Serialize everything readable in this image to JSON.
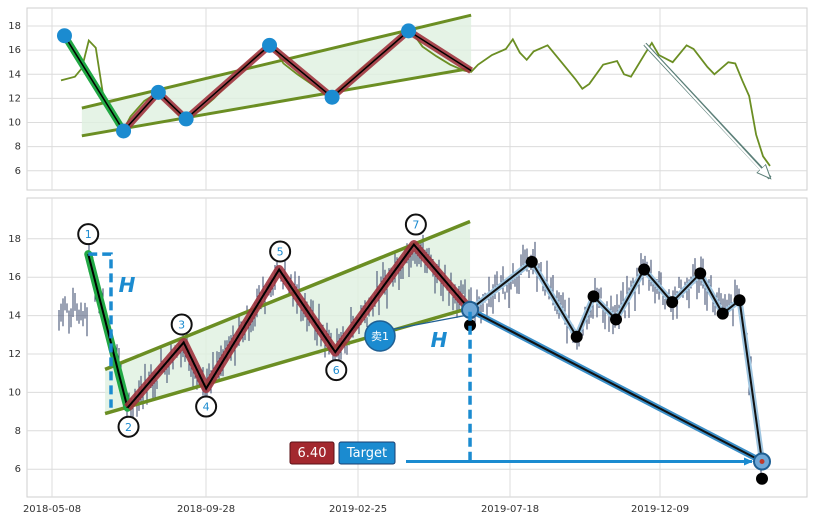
{
  "chart_data": [
    {
      "type": "line",
      "panel": "overview",
      "ylim": [
        5,
        19
      ],
      "yticks": [
        6,
        8,
        10,
        12,
        14,
        16,
        18
      ],
      "grid": true,
      "series": [
        {
          "role": "price",
          "color": "#6b8e23",
          "points": [
            [
              0,
              13.5
            ],
            [
              2,
              13.8
            ],
            [
              3,
              14.5
            ],
            [
              4,
              16.8
            ],
            [
              5,
              16.2
            ],
            [
              6,
              12.5
            ],
            [
              7,
              11.0
            ],
            [
              8,
              9.8
            ],
            [
              9,
              9.4
            ],
            [
              10,
              10.5
            ],
            [
              12,
              11.8
            ],
            [
              14,
              12.5
            ],
            [
              15,
              12.0
            ],
            [
              16,
              11.2
            ],
            [
              17,
              10.6
            ],
            [
              18,
              10.4
            ],
            [
              20,
              11.0
            ],
            [
              22,
              12.0
            ],
            [
              24,
              13.2
            ],
            [
              26,
              14.6
            ],
            [
              28,
              15.5
            ],
            [
              30,
              16.3
            ],
            [
              31,
              15.8
            ],
            [
              32,
              14.9
            ],
            [
              34,
              14.0
            ],
            [
              36,
              13.2
            ],
            [
              38,
              12.4
            ],
            [
              39,
              12.1
            ],
            [
              40,
              12.8
            ],
            [
              42,
              13.8
            ],
            [
              44,
              14.8
            ],
            [
              46,
              15.6
            ],
            [
              48,
              16.5
            ],
            [
              49,
              17.3
            ],
            [
              50,
              17.6
            ],
            [
              51,
              17.1
            ],
            [
              52,
              16.3
            ],
            [
              54,
              15.5
            ],
            [
              56,
              14.8
            ],
            [
              58,
              14.3
            ],
            [
              59,
              14.2
            ],
            [
              60,
              14.8
            ],
            [
              62,
              15.6
            ],
            [
              64,
              16.1
            ],
            [
              65,
              16.9
            ],
            [
              66,
              15.8
            ],
            [
              67,
              15.2
            ],
            [
              68,
              15.9
            ],
            [
              70,
              16.4
            ],
            [
              72,
              15.0
            ],
            [
              74,
              13.6
            ],
            [
              75,
              12.8
            ],
            [
              76,
              13.2
            ],
            [
              78,
              14.8
            ],
            [
              80,
              15.1
            ],
            [
              81,
              14.0
            ],
            [
              82,
              13.8
            ],
            [
              84,
              15.7
            ],
            [
              85,
              16.6
            ],
            [
              86,
              15.6
            ],
            [
              88,
              15.0
            ],
            [
              90,
              16.4
            ],
            [
              91,
              16.1
            ],
            [
              93,
              14.6
            ],
            [
              94,
              14.0
            ],
            [
              96,
              15.0
            ],
            [
              97,
              14.9
            ],
            [
              98,
              13.5
            ],
            [
              99,
              12.2
            ],
            [
              100,
              9.0
            ],
            [
              101,
              7.2
            ],
            [
              102,
              6.4
            ]
          ]
        }
      ],
      "pattern": {
        "pivots": [
          {
            "label": "1",
            "x": 0.5,
            "y": 17.2
          },
          {
            "label": "2",
            "x": 9,
            "y": 9.3
          },
          {
            "label": "3",
            "x": 14,
            "y": 12.5
          },
          {
            "label": "4",
            "x": 18,
            "y": 10.3
          },
          {
            "label": "5",
            "x": 30,
            "y": 16.4
          },
          {
            "label": "6",
            "x": 39,
            "y": 12.1
          },
          {
            "label": "7",
            "x": 50,
            "y": 17.6
          },
          {
            "label": "end",
            "x": 59,
            "y": 14.3
          }
        ],
        "upper_line": [
          [
            3,
            11.2
          ],
          [
            59,
            18.9
          ]
        ],
        "lower_line": [
          [
            3,
            8.9
          ],
          [
            59,
            14.5
          ]
        ],
        "projection": [
          [
            84,
            16.5
          ],
          [
            102,
            5.4
          ]
        ]
      }
    },
    {
      "type": "line",
      "panel": "detail",
      "ylim": [
        4.5,
        19.5
      ],
      "yticks": [
        6,
        8,
        10,
        12,
        14,
        16,
        18
      ],
      "xticks": [
        "2018-05-08",
        "2018-09-28",
        "2019-02-25",
        "2019-07-18",
        "2019-12-09"
      ],
      "grid": true,
      "pattern": {
        "pivots": [
          {
            "label": "1",
            "x": 2,
            "y": 17.2
          },
          {
            "label": "2",
            "x": 9,
            "y": 9.2
          },
          {
            "label": "3",
            "x": 19,
            "y": 12.6
          },
          {
            "label": "4",
            "x": 23,
            "y": 10.2
          },
          {
            "label": "5",
            "x": 36,
            "y": 16.4
          },
          {
            "label": "6",
            "x": 46,
            "y": 12.1
          },
          {
            "label": "7",
            "x": 60,
            "y": 17.7
          },
          {
            "label": "end",
            "x": 70,
            "y": 14.3
          }
        ],
        "upper_line": [
          [
            5,
            11.2
          ],
          [
            70,
            18.9
          ]
        ],
        "lower_line": [
          [
            5,
            8.9
          ],
          [
            70,
            14.4
          ]
        ]
      },
      "forecast_path": [
        [
          70,
          14.3
        ],
        [
          81,
          16.8
        ],
        [
          89,
          12.9
        ],
        [
          92,
          15.0
        ],
        [
          96,
          13.8
        ],
        [
          101,
          16.4
        ],
        [
          106,
          14.7
        ],
        [
          111,
          16.2
        ],
        [
          115,
          14.1
        ],
        [
          118,
          14.8
        ],
        [
          122,
          6.4
        ]
      ],
      "direct_path": [
        [
          70,
          14.3
        ],
        [
          122,
          6.4
        ]
      ],
      "black_dots": [
        [
          70,
          13.5
        ],
        [
          81,
          16.8
        ],
        [
          89,
          12.9
        ],
        [
          92,
          15.0
        ],
        [
          96,
          13.8
        ],
        [
          101,
          16.4
        ],
        [
          106,
          14.7
        ],
        [
          111,
          16.2
        ],
        [
          115,
          14.1
        ],
        [
          118,
          14.8
        ],
        [
          122,
          5.5
        ]
      ],
      "annotations": {
        "height_label": "H",
        "sell_label": "卖1",
        "target_price": "6.40",
        "target_label": "Target"
      },
      "colors": {
        "wave_up": "#a0343e",
        "first_leg": "#22a845",
        "channel": "#6b8e23",
        "channel_fill": "#dff0e0",
        "marker": "#1b8bd0",
        "target_value_bg": "#a3282e",
        "target_label_bg": "#1b8bd0"
      }
    }
  ]
}
